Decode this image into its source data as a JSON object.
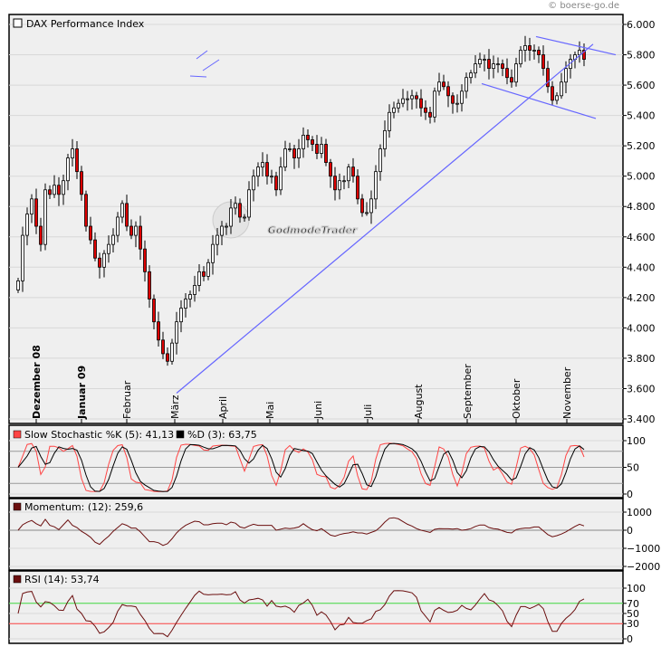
{
  "copyright": "© boerse-go.de",
  "watermark": "GodmodeTrader",
  "colors": {
    "up": "#ffffff",
    "down": "#dd0000",
    "trendline": "#6666ff",
    "stoch_k": "#ff4444",
    "stoch_d": "#000000",
    "indicator": "#6b0f0f",
    "rsi_70": "#44dd44",
    "rsi_30": "#ff4444",
    "panel_bg": "#efefef"
  },
  "chart_data": [
    {
      "type": "candlestick",
      "title": "DAX Performance Index",
      "ylim": [
        3400,
        6000
      ],
      "y_ticks": [
        "6.000",
        "5.800",
        "5.600",
        "5.400",
        "5.200",
        "5.000",
        "4.800",
        "4.600",
        "4.400",
        "4.200",
        "4.000",
        "3.800",
        "3.600",
        "3.400"
      ],
      "y_tick_values": [
        6000,
        5800,
        5600,
        5400,
        5200,
        5000,
        4800,
        4600,
        4400,
        4200,
        4000,
        3800,
        3600,
        3400
      ],
      "month_labels": [
        {
          "label": "Dezember 08",
          "index": 4,
          "bold": true
        },
        {
          "label": "Januar 09",
          "index": 14,
          "bold": true
        },
        {
          "label": "Februar",
          "index": 24
        },
        {
          "label": "März",
          "index": 34.6
        },
        {
          "label": "April",
          "index": 45.2
        },
        {
          "label": "Mai",
          "index": 55.6
        },
        {
          "label": "Juni",
          "index": 66.2
        },
        {
          "label": "Juli",
          "index": 77.2
        },
        {
          "label": "August",
          "index": 88.4
        },
        {
          "label": "September",
          "index": 99.2
        },
        {
          "label": "Oktober",
          "index": 110
        },
        {
          "label": "November",
          "index": 121.2
        }
      ],
      "closes": [
        4310,
        4610,
        4750,
        4850,
        4670,
        4550,
        4910,
        4880,
        4940,
        4880,
        4970,
        5120,
        5180,
        5030,
        4880,
        4670,
        4580,
        4460,
        4400,
        4490,
        4550,
        4610,
        4730,
        4820,
        4670,
        4610,
        4670,
        4520,
        4370,
        4190,
        4040,
        3920,
        3830,
        3780,
        3900,
        4040,
        4130,
        4190,
        4220,
        4280,
        4370,
        4340,
        4430,
        4550,
        4610,
        4670,
        4670,
        4790,
        4820,
        4730,
        4730,
        4910,
        5000,
        5060,
        5090,
        5000,
        5000,
        4910,
        5060,
        5180,
        5180,
        5120,
        5180,
        5270,
        5240,
        5210,
        5150,
        5210,
        5090,
        5000,
        4910,
        4970,
        4970,
        5060,
        5000,
        4850,
        4760,
        4760,
        4850,
        5030,
        5180,
        5300,
        5420,
        5450,
        5480,
        5510,
        5510,
        5530,
        5510,
        5450,
        5420,
        5390,
        5560,
        5620,
        5590,
        5530,
        5480,
        5480,
        5560,
        5650,
        5680,
        5740,
        5770,
        5770,
        5710,
        5740,
        5740,
        5710,
        5650,
        5620,
        5740,
        5830,
        5860,
        5830,
        5830,
        5800,
        5710,
        5590,
        5500,
        5530,
        5620,
        5710,
        5770,
        5800,
        5830,
        5770
      ],
      "trendlines": [
        {
          "from": {
            "index": 35,
            "price": 3570
          },
          "to": {
            "index": 127,
            "price": 5870
          }
        },
        {
          "from": {
            "index": 114.4,
            "price": 5920
          },
          "to": {
            "index": 132,
            "price": 5800
          }
        },
        {
          "from": {
            "index": 102.4,
            "price": 5610
          },
          "to": {
            "index": 127.6,
            "price": 5380
          }
        }
      ]
    },
    {
      "type": "line",
      "name": "stochastic",
      "legend": [
        {
          "label": "Slow Stochastic %K (5): 41,13",
          "color": "#ff4444"
        },
        {
          "label": "%D (3): 63,75",
          "color": "#000000"
        }
      ],
      "ylim": [
        0,
        100
      ],
      "y_ticks": [
        "100",
        "50",
        "0"
      ],
      "y_tick_values": [
        100,
        50,
        0
      ],
      "guides": [
        20,
        50,
        80
      ]
    },
    {
      "type": "line",
      "name": "momentum",
      "legend": [
        {
          "label": "Momentum: (12): 259,6",
          "color": "#6b0f0f"
        }
      ],
      "ylim": [
        -2000,
        1000
      ],
      "y_ticks": [
        "1000",
        "0",
        "−1000",
        "−2000"
      ],
      "y_tick_values": [
        1000,
        0,
        -1000,
        -2000
      ]
    },
    {
      "type": "line",
      "name": "rsi",
      "legend": [
        {
          "label": "RSI (14): 53,74",
          "color": "#6b0f0f"
        }
      ],
      "ylim": [
        0,
        100
      ],
      "y_ticks": [
        "100",
        "70",
        "50",
        "30",
        "0"
      ],
      "y_tick_values": [
        100,
        70,
        50,
        30,
        0
      ],
      "levels": [
        {
          "value": 70,
          "color": "#44dd44"
        },
        {
          "value": 30,
          "color": "#ff4444"
        }
      ]
    }
  ]
}
